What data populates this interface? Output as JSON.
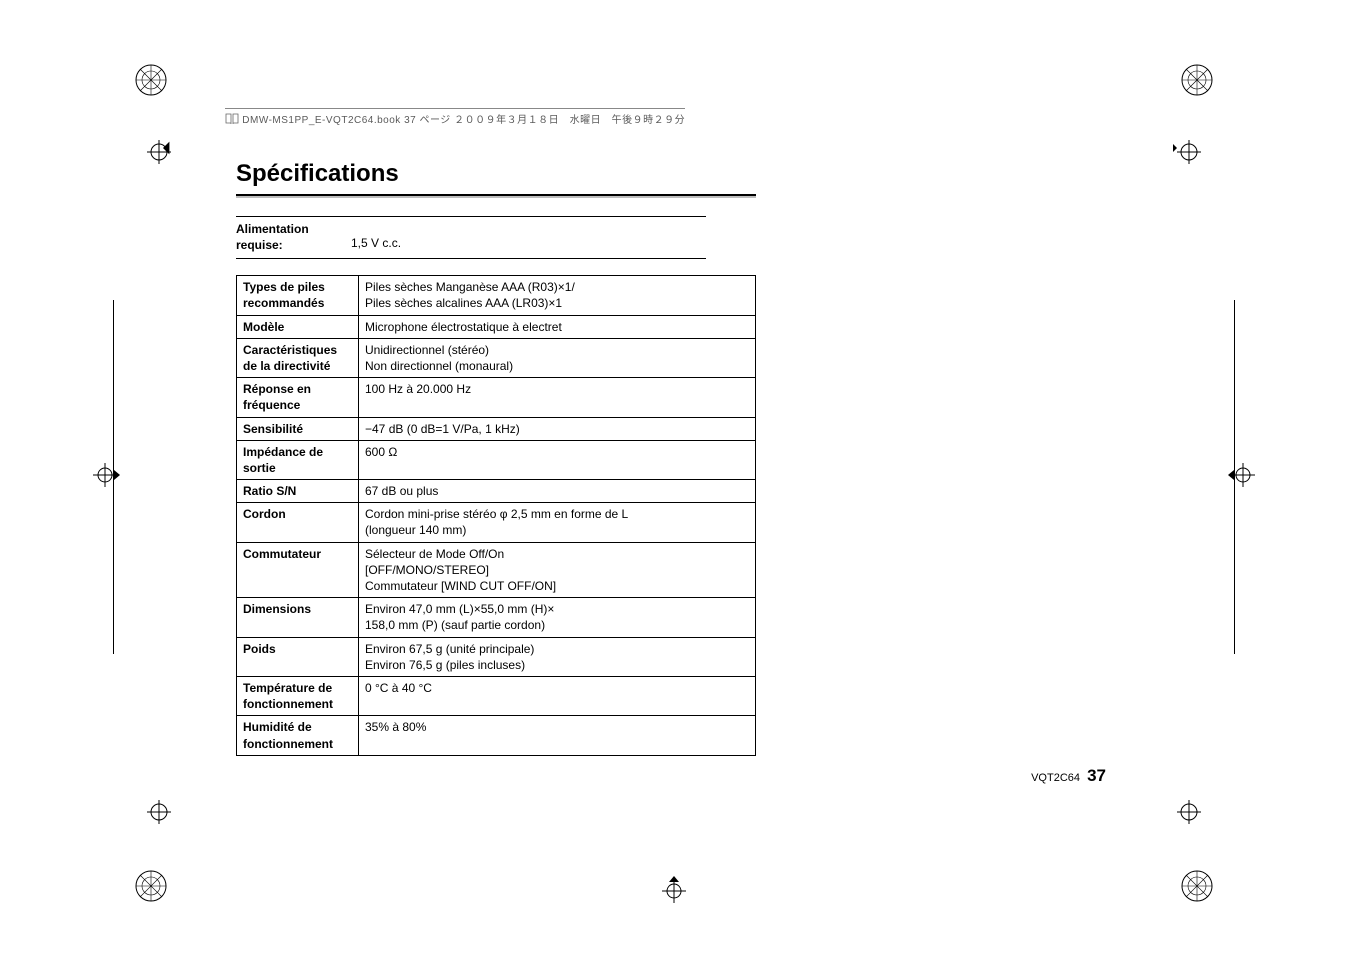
{
  "header": {
    "text": "DMW-MS1PP_E-VQT2C64.book  37 ページ  ２００９年３月１８日　水曜日　午後９時２９分"
  },
  "title": "Spécifications",
  "power": {
    "label_line1": "Alimentation",
    "label_line2": "requise:",
    "value": "1,5 V c.c."
  },
  "rows": [
    {
      "k": "Types de piles recommandés",
      "v": "Piles sèches Manganèse AAA (R03)×1/\nPiles sèches alcalines AAA (LR03)×1"
    },
    {
      "k": "Modèle",
      "v": "Microphone électrostatique à electret"
    },
    {
      "k": "Caractéristiques de la directivité",
      "v": "Unidirectionnel (stéréo)\nNon directionnel (monaural)"
    },
    {
      "k": "Réponse en fréquence",
      "v": "100 Hz à 20.000 Hz"
    },
    {
      "k": "Sensibilité",
      "v": "−47 dB (0 dB=1 V/Pa, 1 kHz)"
    },
    {
      "k": "Impédance de sortie",
      "v": "600 Ω"
    },
    {
      "k": " Ratio S/N",
      "v": "67 dB ou plus"
    },
    {
      "k": "Cordon",
      "v": "Cordon mini-prise stéréo φ 2,5 mm en forme de L\n(longueur 140 mm)"
    },
    {
      "k": "Commutateur",
      "v": "Sélecteur de Mode Off/On\n[OFF/MONO/STEREO]\nCommutateur [WIND CUT OFF/ON]"
    },
    {
      "k": "Dimensions",
      "v": "Environ 47,0 mm (L)×55,0 mm (H)×\n158,0 mm (P) (sauf partie cordon)"
    },
    {
      "k": "Poids",
      "v": "Environ 67,5 g (unité principale)\nEnviron 76,5 g (piles incluses)"
    },
    {
      "k": "Température de fonctionnement",
      "v": "0 °C à 40 °C"
    },
    {
      "k": "Humidité de fonctionnement",
      "v": "35% à 80%"
    }
  ],
  "footer": {
    "code": "VQT2C64",
    "page": "37"
  }
}
